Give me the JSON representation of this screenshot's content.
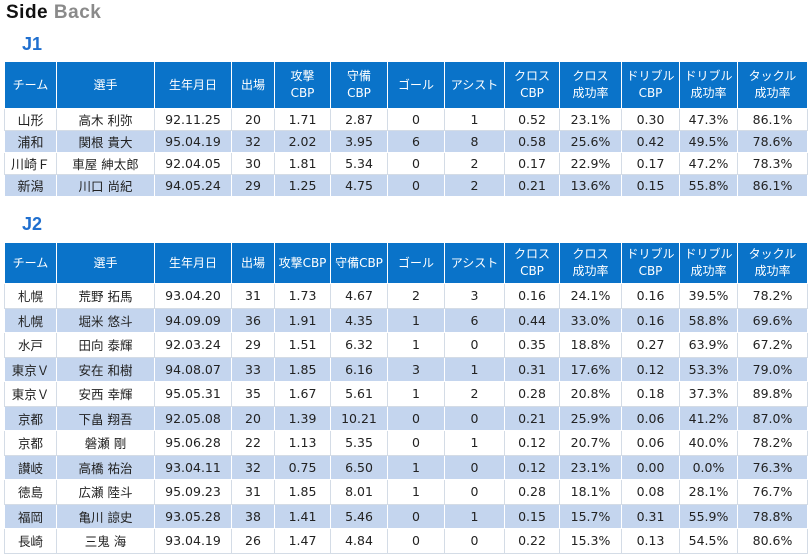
{
  "title": {
    "word1": "Side",
    "word2": "Back"
  },
  "sections": [
    {
      "label": "J1",
      "headers": [
        [
          "チーム"
        ],
        [
          "選手"
        ],
        [
          "生年月日"
        ],
        [
          "出場"
        ],
        [
          "攻撃",
          "CBP"
        ],
        [
          "守備",
          "CBP"
        ],
        [
          "ゴール"
        ],
        [
          "アシスト"
        ],
        [
          "クロス",
          "CBP"
        ],
        [
          "クロス",
          "成功率"
        ],
        [
          "ドリブル",
          "CBP"
        ],
        [
          "ドリブル",
          "成功率"
        ],
        [
          "タックル",
          "成功率"
        ]
      ],
      "rows": [
        [
          "山形",
          "高木 利弥",
          "92.11.25",
          "20",
          "1.71",
          "2.87",
          "0",
          "1",
          "0.52",
          "23.1%",
          "0.30",
          "47.3%",
          "86.1%"
        ],
        [
          "浦和",
          "関根 貴大",
          "95.04.19",
          "32",
          "2.02",
          "3.95",
          "6",
          "8",
          "0.58",
          "25.6%",
          "0.42",
          "49.5%",
          "78.6%"
        ],
        [
          "川崎Ｆ",
          "車屋 紳太郎",
          "92.04.05",
          "30",
          "1.81",
          "5.34",
          "0",
          "2",
          "0.17",
          "22.9%",
          "0.17",
          "47.2%",
          "78.3%"
        ],
        [
          "新潟",
          "川口 尚紀",
          "94.05.24",
          "29",
          "1.25",
          "4.75",
          "0",
          "2",
          "0.21",
          "13.6%",
          "0.15",
          "55.8%",
          "86.1%"
        ]
      ]
    },
    {
      "label": "J2",
      "headers": [
        [
          "チーム"
        ],
        [
          "選手"
        ],
        [
          "生年月日"
        ],
        [
          "出場"
        ],
        [
          "攻撃CBP"
        ],
        [
          "守備CBP"
        ],
        [
          "ゴール"
        ],
        [
          "アシスト"
        ],
        [
          "クロス",
          "CBP"
        ],
        [
          "クロス",
          "成功率"
        ],
        [
          "ドリブル",
          "CBP"
        ],
        [
          "ドリブル",
          "成功率"
        ],
        [
          "タックル",
          "成功率"
        ]
      ],
      "rows": [
        [
          "札幌",
          "荒野 拓馬",
          "93.04.20",
          "31",
          "1.73",
          "4.67",
          "2",
          "3",
          "0.16",
          "24.1%",
          "0.16",
          "39.5%",
          "78.2%"
        ],
        [
          "札幌",
          "堀米 悠斗",
          "94.09.09",
          "36",
          "1.91",
          "4.35",
          "1",
          "6",
          "0.44",
          "33.0%",
          "0.16",
          "58.8%",
          "69.6%"
        ],
        [
          "水戸",
          "田向 泰輝",
          "92.03.24",
          "29",
          "1.51",
          "6.32",
          "1",
          "0",
          "0.35",
          "18.8%",
          "0.27",
          "63.9%",
          "67.2%"
        ],
        [
          "東京Ｖ",
          "安在 和樹",
          "94.08.07",
          "33",
          "1.85",
          "6.16",
          "3",
          "1",
          "0.31",
          "17.6%",
          "0.12",
          "53.3%",
          "79.0%"
        ],
        [
          "東京Ｖ",
          "安西 幸輝",
          "95.05.31",
          "35",
          "1.67",
          "5.61",
          "1",
          "2",
          "0.28",
          "20.8%",
          "0.18",
          "37.3%",
          "89.8%"
        ],
        [
          "京都",
          "下畠 翔吾",
          "92.05.08",
          "20",
          "1.39",
          "10.21",
          "0",
          "0",
          "0.21",
          "25.9%",
          "0.06",
          "41.2%",
          "87.0%"
        ],
        [
          "京都",
          "磐瀬 剛",
          "95.06.28",
          "22",
          "1.13",
          "5.35",
          "0",
          "1",
          "0.12",
          "20.7%",
          "0.06",
          "40.0%",
          "78.2%"
        ],
        [
          "讃岐",
          "高橋 祐治",
          "93.04.11",
          "32",
          "0.75",
          "6.50",
          "1",
          "0",
          "0.12",
          "23.1%",
          "0.00",
          "0.0%",
          "76.3%"
        ],
        [
          "徳島",
          "広瀬 陸斗",
          "95.09.23",
          "31",
          "1.85",
          "8.01",
          "1",
          "0",
          "0.28",
          "18.1%",
          "0.08",
          "28.1%",
          "76.7%"
        ],
        [
          "福岡",
          "亀川 諒史",
          "93.05.28",
          "38",
          "1.41",
          "5.46",
          "0",
          "1",
          "0.15",
          "15.7%",
          "0.31",
          "55.9%",
          "78.8%"
        ],
        [
          "長崎",
          "三鬼 海",
          "93.04.19",
          "26",
          "1.47",
          "4.84",
          "0",
          "0",
          "0.22",
          "15.3%",
          "0.13",
          "54.5%",
          "80.6%"
        ]
      ]
    }
  ]
}
